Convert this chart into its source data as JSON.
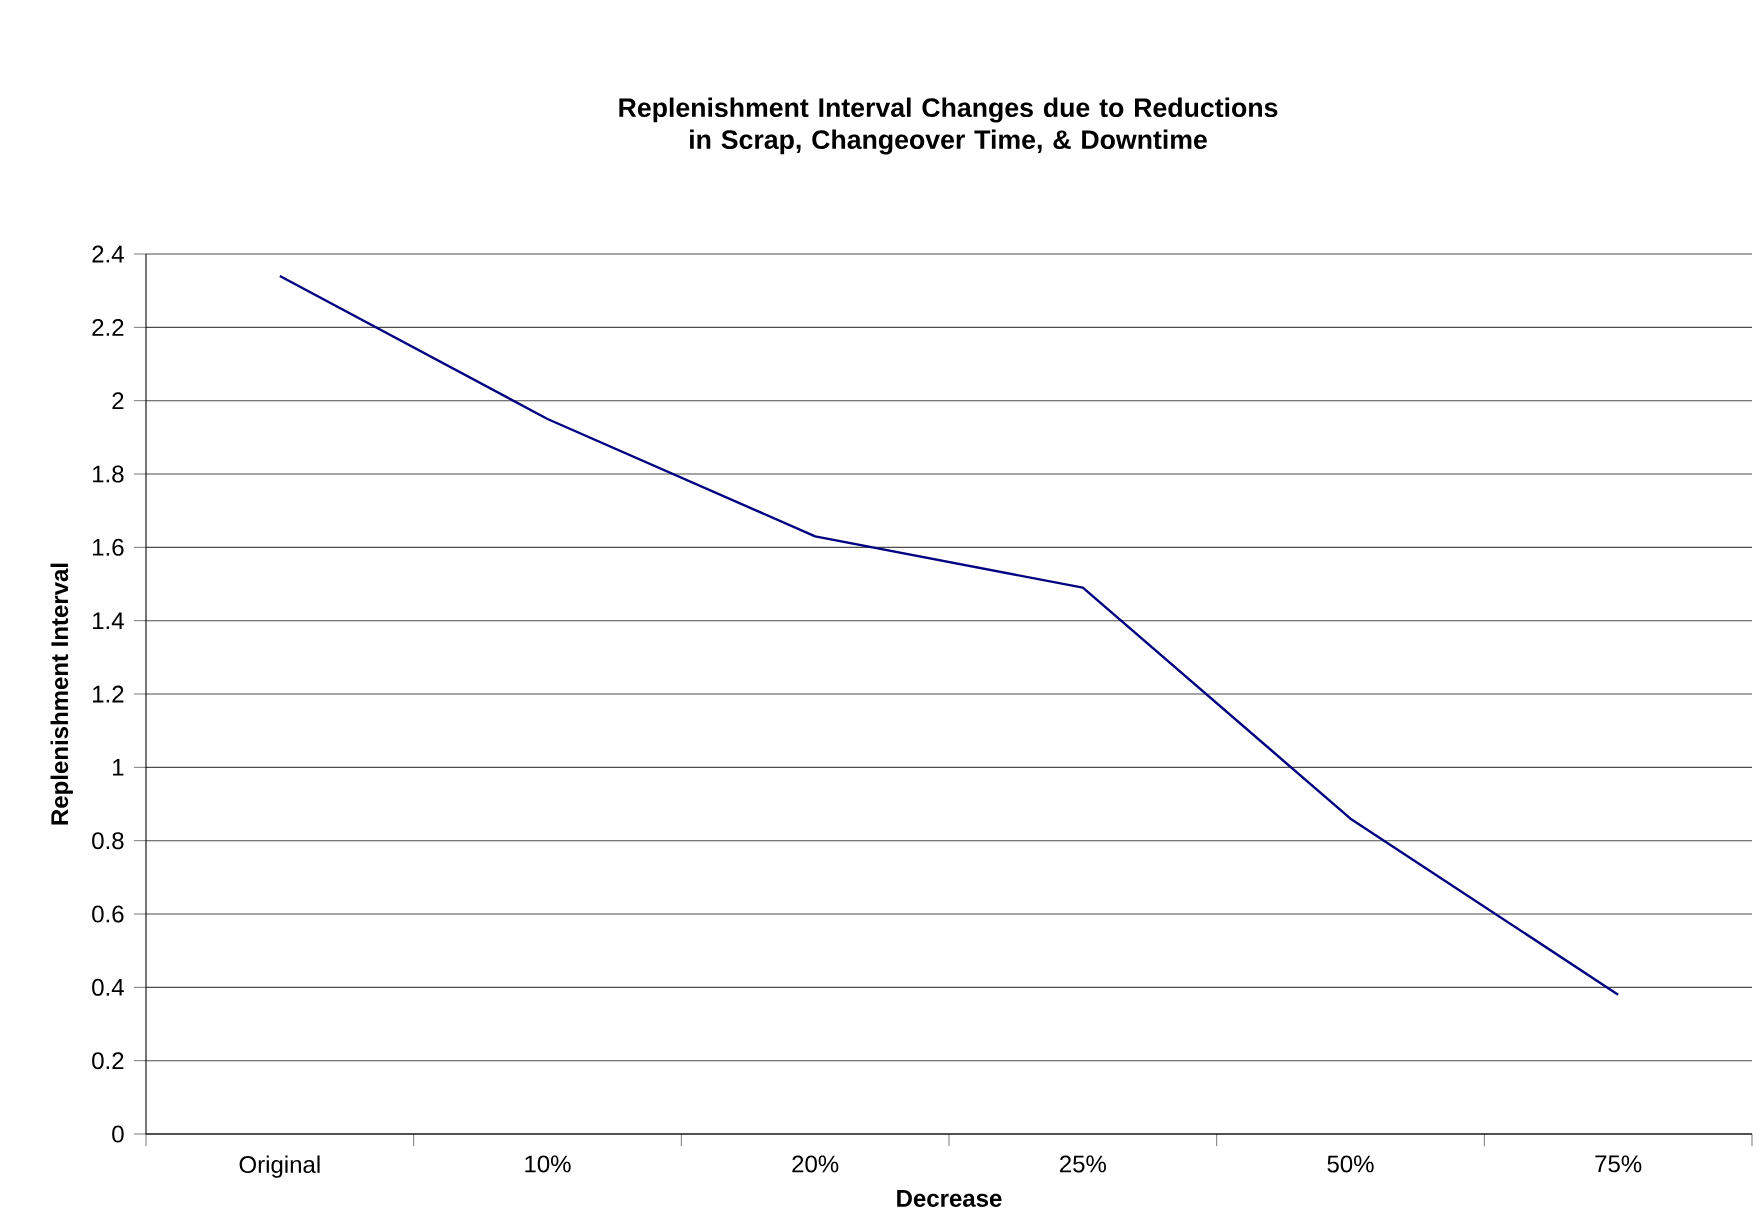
{
  "chart_data": {
    "type": "line",
    "title": "Replenishment Interval Changes due to Reductions in Scrap, Changeover Time, & Downtime",
    "xlabel": "Decrease",
    "ylabel": "Replenishment Interval",
    "categories": [
      "Original",
      "10%",
      "20%",
      "25%",
      "50%",
      "75%"
    ],
    "series": [
      {
        "color": "#000080",
        "values": [
          2.34,
          1.95,
          1.63,
          1.49,
          0.86,
          0.38
        ]
      }
    ],
    "ylim": [
      0,
      2.4
    ],
    "yticks": [
      0,
      0.2,
      0.4,
      0.6,
      0.8,
      1,
      1.2,
      1.4,
      1.6,
      1.8,
      2,
      2.2,
      2.4
    ],
    "grid": "y",
    "marker": "none",
    "line_style": "solid"
  }
}
